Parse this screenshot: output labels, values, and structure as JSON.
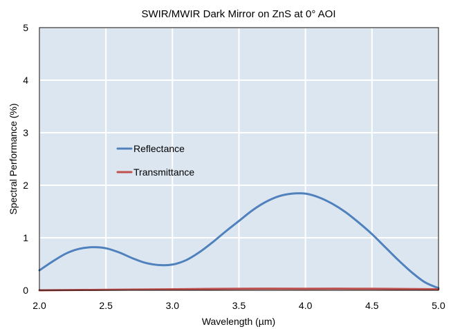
{
  "chart_data": {
    "type": "line",
    "title": "SWIR/MWIR Dark Mirror on ZnS at 0° AOI",
    "xlabel": "Wavelength (µm)",
    "ylabel": "Spectral Performance (%)",
    "xlim": [
      2.0,
      5.0
    ],
    "ylim": [
      0,
      5
    ],
    "x_ticks": [
      "2.0",
      "2.5",
      "3.0",
      "3.5",
      "4.0",
      "4.5",
      "5.0"
    ],
    "y_ticks": [
      "0",
      "1",
      "2",
      "3",
      "4",
      "5"
    ],
    "grid": true,
    "legend_placement": "center-left",
    "colors": {
      "plot_background": "#dce6f1",
      "grid": "#ffffff",
      "axis": "#000000"
    },
    "series": [
      {
        "name": "Reflectance",
        "color": "#4f81bd",
        "x": [
          2.0,
          2.1,
          2.2,
          2.3,
          2.4,
          2.5,
          2.6,
          2.7,
          2.8,
          2.9,
          3.0,
          3.1,
          3.2,
          3.3,
          3.4,
          3.5,
          3.6,
          3.7,
          3.8,
          3.9,
          4.0,
          4.1,
          4.2,
          4.3,
          4.4,
          4.5,
          4.6,
          4.7,
          4.8,
          4.9,
          5.0
        ],
        "values": [
          0.38,
          0.55,
          0.7,
          0.79,
          0.82,
          0.8,
          0.72,
          0.61,
          0.52,
          0.48,
          0.49,
          0.57,
          0.72,
          0.91,
          1.12,
          1.32,
          1.52,
          1.68,
          1.79,
          1.84,
          1.84,
          1.77,
          1.65,
          1.49,
          1.29,
          1.07,
          0.82,
          0.57,
          0.34,
          0.15,
          0.04
        ]
      },
      {
        "name": "Transmittance",
        "color": "#c0504d",
        "x": [
          2.0,
          2.5,
          3.0,
          3.5,
          4.0,
          4.5,
          5.0
        ],
        "values": [
          0.0,
          0.01,
          0.02,
          0.03,
          0.03,
          0.03,
          0.02
        ]
      }
    ]
  }
}
